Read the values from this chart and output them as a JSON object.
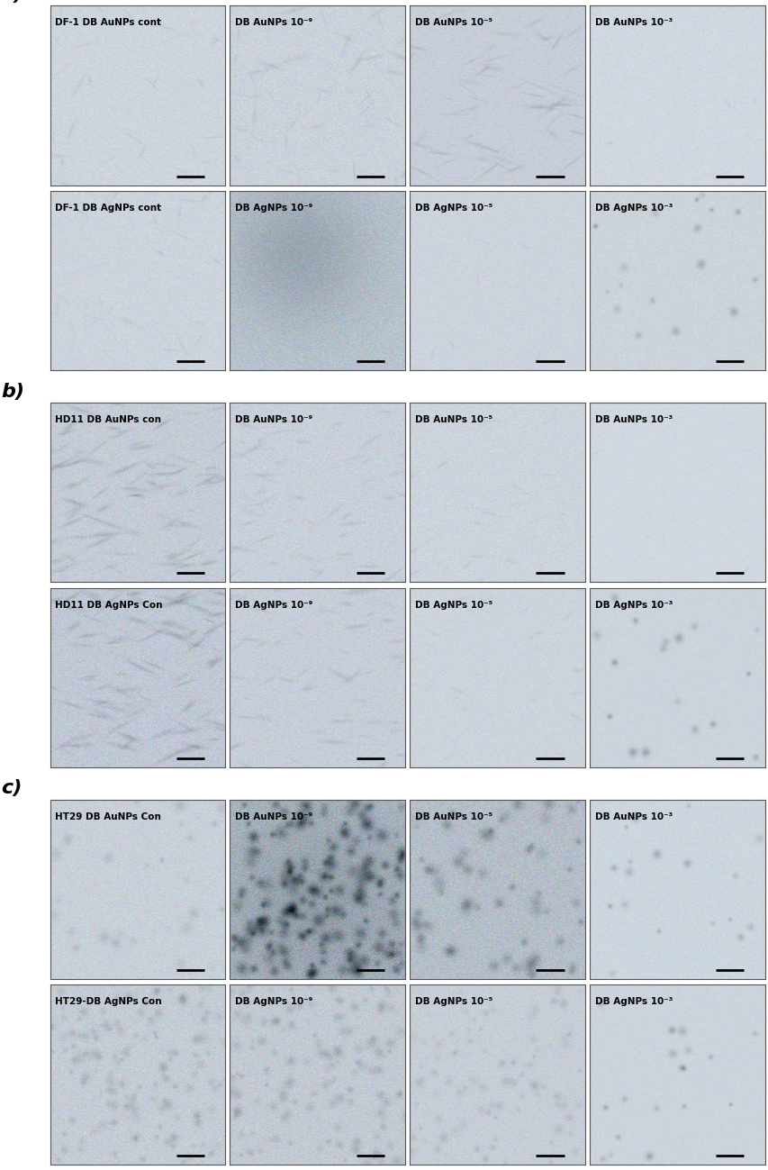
{
  "figure_width": 8.54,
  "figure_height": 12.99,
  "background_color": "#ffffff",
  "panel_label_fontsize": 16,
  "image_label_fontsize": 7.5,
  "panel_label_fontweight": "bold",
  "scale_bar_color": "#000000",
  "panels": [
    {
      "label": "a)",
      "rows": [
        {
          "images": [
            {
              "title": "DF-1 DB AuNPs cont",
              "bg": "#cdd5dc",
              "noise_std": 6,
              "texture": "sparse_elongated"
            },
            {
              "title": "DB AuNPs 10⁻⁹",
              "bg": "#cad2da",
              "noise_std": 7,
              "texture": "sparse_elongated_dark"
            },
            {
              "title": "DB AuNPs 10⁻⁵",
              "bg": "#c6ced8",
              "noise_std": 6,
              "texture": "fibrous_diagonal"
            },
            {
              "title": "DB AuNPs 10⁻³",
              "bg": "#d0d8e0",
              "noise_std": 5,
              "texture": "very_sparse"
            }
          ]
        },
        {
          "images": [
            {
              "title": "DF-1 DB AgNPs cont",
              "bg": "#ccd4dc",
              "noise_std": 6,
              "texture": "sparse_elongated"
            },
            {
              "title": "DB AgNPs 10⁻⁹",
              "bg": "#b8c4ce",
              "noise_std": 9,
              "texture": "gradient_dark_center"
            },
            {
              "title": "DB AgNPs 10⁻⁵",
              "bg": "#ccd4dc",
              "noise_std": 5,
              "texture": "very_sparse"
            },
            {
              "title": "DB AgNPs 10⁻³",
              "bg": "#ccd4da",
              "noise_std": 5,
              "texture": "scattered_small"
            }
          ]
        }
      ]
    },
    {
      "label": "b)",
      "rows": [
        {
          "images": [
            {
              "title": "HD11 DB AuNPs con",
              "bg": "#c4ccd6",
              "noise_std": 8,
              "texture": "dense_fibrous"
            },
            {
              "title": "DB AuNPs 10⁻⁹",
              "bg": "#c8d0da",
              "noise_std": 7,
              "texture": "medium_fibrous"
            },
            {
              "title": "DB AuNPs 10⁻⁵",
              "bg": "#ccd4dc",
              "noise_std": 6,
              "texture": "light_fibrous"
            },
            {
              "title": "DB AuNPs 10⁻³",
              "bg": "#d0d8e0",
              "noise_std": 4,
              "texture": "very_sparse"
            }
          ]
        },
        {
          "images": [
            {
              "title": "HD11 DB AgNPs Con",
              "bg": "#c0c8d4",
              "noise_std": 9,
              "texture": "dense_fibrous"
            },
            {
              "title": "DB AgNPs 10⁻⁹",
              "bg": "#c6ced8",
              "noise_std": 7,
              "texture": "medium_fibrous"
            },
            {
              "title": "DB AgNPs 10⁻⁵",
              "bg": "#ccd4dc",
              "noise_std": 5,
              "texture": "light_fibrous"
            },
            {
              "title": "DB AgNPs 10⁻³",
              "bg": "#ccd4dc",
              "noise_std": 4,
              "texture": "scattered_small"
            }
          ]
        }
      ]
    },
    {
      "label": "c)",
      "rows": [
        {
          "images": [
            {
              "title": "HT29 DB AuNPs Con",
              "bg": "#c8d0d8",
              "noise_std": 7,
              "texture": "sparse_round"
            },
            {
              "title": "DB AuNPs 10⁻⁹",
              "bg": "#a8b4be",
              "noise_std": 12,
              "texture": "dense_round"
            },
            {
              "title": "DB AuNPs 10⁻⁵",
              "bg": "#b4bec8",
              "noise_std": 10,
              "texture": "medium_round"
            },
            {
              "title": "DB AuNPs 10⁻³",
              "bg": "#ccd6de",
              "noise_std": 5,
              "texture": "scattered_small"
            }
          ]
        },
        {
          "images": [
            {
              "title": "HT29-DB AgNPs Con",
              "bg": "#c4ccd4",
              "noise_std": 8,
              "texture": "dense_uniform_round"
            },
            {
              "title": "DB AgNPs 10⁻⁹",
              "bg": "#c2cad2",
              "noise_std": 8,
              "texture": "dense_uniform_round"
            },
            {
              "title": "DB AgNPs 10⁻⁵",
              "bg": "#c6ced6",
              "noise_std": 6,
              "texture": "medium_uniform_round"
            },
            {
              "title": "DB AgNPs 10⁻³",
              "bg": "#ccd4dc",
              "noise_std": 4,
              "texture": "scattered_small"
            }
          ]
        }
      ]
    }
  ]
}
